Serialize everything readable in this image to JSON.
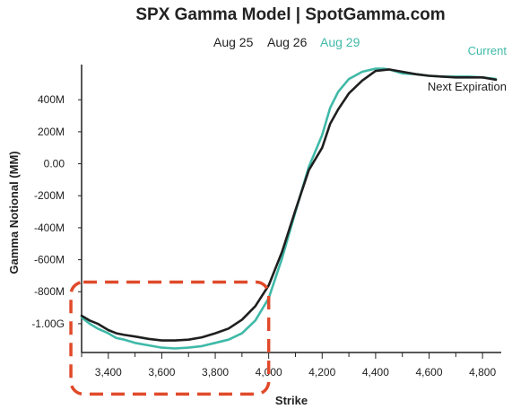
{
  "chart_data": {
    "type": "line",
    "title": "SPX Gamma Model | SpotGamma.com",
    "legend": [
      {
        "label": "Aug 25",
        "color": "#222222"
      },
      {
        "label": "Aug 26",
        "color": "#222222"
      },
      {
        "label": "Aug 29",
        "color": "#3fb9a8"
      }
    ],
    "xlabel": "Strike",
    "ylabel": "Gamma Notional (MM)",
    "xlim": [
      3300,
      4870
    ],
    "ylim": [
      -1180,
      620
    ],
    "x_ticks": [
      3400,
      3600,
      3800,
      4000,
      4200,
      4400,
      4600,
      4800
    ],
    "x_tick_labels": [
      "3,400",
      "3,600",
      "3,800",
      "4,000",
      "4,200",
      "4,400",
      "4,600",
      "4,800"
    ],
    "y_ticks": [
      400,
      200,
      0,
      -200,
      -400,
      -600,
      -800,
      -1000
    ],
    "y_tick_labels": [
      "400M",
      "200M",
      "0.00",
      "-200M",
      "-400M",
      "-600M",
      "-800M",
      "-1.00G"
    ],
    "series": [
      {
        "name": "Current",
        "color": "#3fb9a8",
        "x": [
          3300,
          3330,
          3360,
          3400,
          3430,
          3460,
          3500,
          3550,
          3600,
          3650,
          3700,
          3750,
          3800,
          3850,
          3900,
          3950,
          4000,
          4050,
          4100,
          4150,
          4200,
          4230,
          4260,
          4300,
          4350,
          4400,
          4430,
          4460,
          4500,
          4550,
          4600,
          4650,
          4700,
          4750,
          4800,
          4850
        ],
        "y": [
          -960,
          -1000,
          -1030,
          -1060,
          -1090,
          -1100,
          -1120,
          -1135,
          -1150,
          -1155,
          -1150,
          -1140,
          -1120,
          -1100,
          -1060,
          -980,
          -840,
          -590,
          -300,
          -20,
          180,
          350,
          450,
          530,
          575,
          595,
          595,
          585,
          565,
          560,
          550,
          545,
          545,
          545,
          540,
          530
        ]
      },
      {
        "name": "Next Expiration",
        "color": "#1f1f1f",
        "x": [
          3300,
          3330,
          3360,
          3400,
          3430,
          3460,
          3500,
          3550,
          3600,
          3650,
          3700,
          3750,
          3800,
          3850,
          3900,
          3950,
          4000,
          4050,
          4100,
          4150,
          4200,
          4230,
          4260,
          4300,
          4350,
          4400,
          4450,
          4500,
          4550,
          4600,
          4650,
          4700,
          4750,
          4800,
          4850
        ],
        "y": [
          -950,
          -980,
          -1000,
          -1040,
          -1060,
          -1070,
          -1080,
          -1095,
          -1105,
          -1105,
          -1100,
          -1085,
          -1060,
          -1030,
          -975,
          -890,
          -760,
          -550,
          -290,
          -40,
          100,
          250,
          340,
          440,
          520,
          580,
          590,
          575,
          560,
          550,
          545,
          540,
          540,
          540,
          525
        ]
      }
    ],
    "series_labels": [
      {
        "text": "Current",
        "color": "#3fb9a8"
      },
      {
        "text": "Next Expiration",
        "color": "#1f1f1f"
      }
    ],
    "annotation": {
      "type": "dashed-rounded-rectangle",
      "color": "#e04a2a",
      "x_range": [
        3260,
        4000
      ],
      "y_range": [
        -1440,
        -740
      ]
    }
  }
}
